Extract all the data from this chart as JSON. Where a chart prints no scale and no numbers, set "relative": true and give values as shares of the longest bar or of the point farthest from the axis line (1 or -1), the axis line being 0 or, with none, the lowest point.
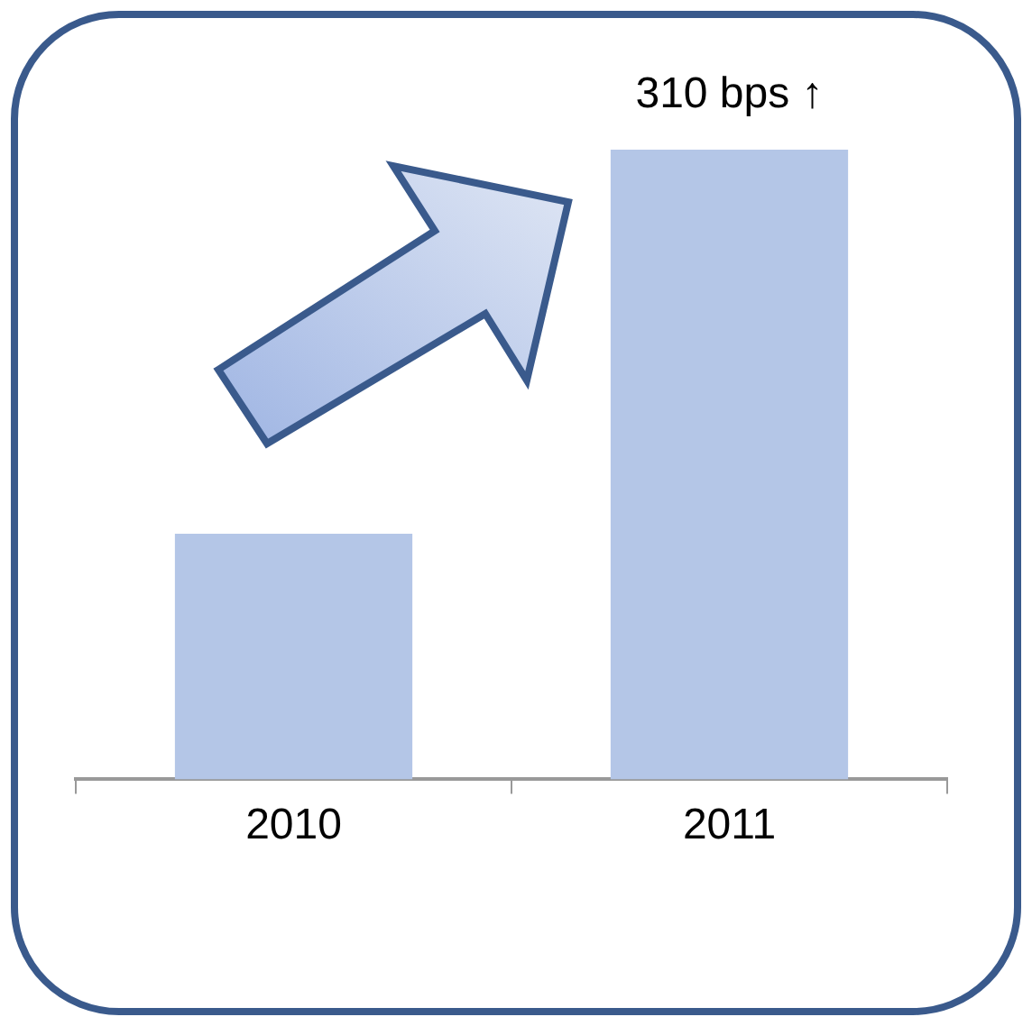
{
  "chart_data": {
    "type": "bar",
    "relative": true,
    "categories": [
      "2010",
      "2011"
    ],
    "values": [
      0.39,
      1
    ],
    "color": "#b4c6e7",
    "annotations": [
      {
        "text": "310 bps ↑",
        "x": "2011",
        "y": 1
      }
    ]
  }
}
